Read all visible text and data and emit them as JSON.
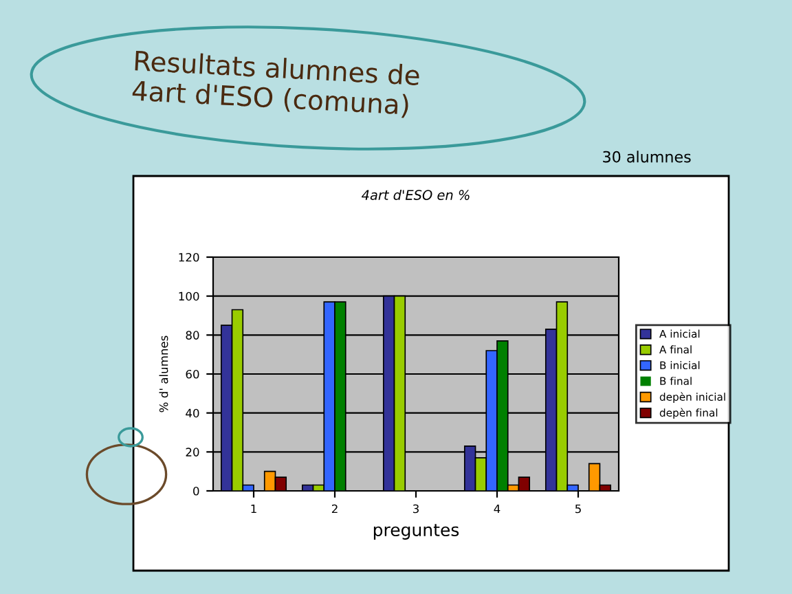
{
  "chart_data": {
    "type": "bar",
    "title": "Resultats alumnes de\n4art d'ESO (comuna)",
    "subtitle": "4art d'ESO en %",
    "annotations": [
      "30 alumnes"
    ],
    "xlabel": "preguntes",
    "ylabel": "% d' alumnes",
    "categories": [
      "1",
      "2",
      "3",
      "4",
      "5"
    ],
    "series": [
      {
        "name": "A inicial",
        "color": "#333399",
        "values": [
          85,
          3,
          100,
          23,
          83
        ]
      },
      {
        "name": "A final",
        "color": "#99cc00",
        "values": [
          93,
          3,
          100,
          17,
          97
        ]
      },
      {
        "name": "B inicial",
        "color": "#3366ff",
        "values": [
          3,
          97,
          0,
          72,
          3
        ]
      },
      {
        "name": "B final",
        "color": "#008000",
        "values": [
          0,
          97,
          0,
          77,
          0
        ]
      },
      {
        "name": "depèn inicial",
        "color": "#ff9900",
        "values": [
          10,
          0,
          0,
          3,
          14
        ]
      },
      {
        "name": "depèn final",
        "color": "#800000",
        "values": [
          7,
          0,
          0,
          7,
          3
        ]
      }
    ],
    "ylim": [
      0,
      120
    ],
    "yticks": [
      0,
      20,
      40,
      60,
      80,
      100,
      120
    ],
    "grid": "y",
    "legend": "right"
  }
}
